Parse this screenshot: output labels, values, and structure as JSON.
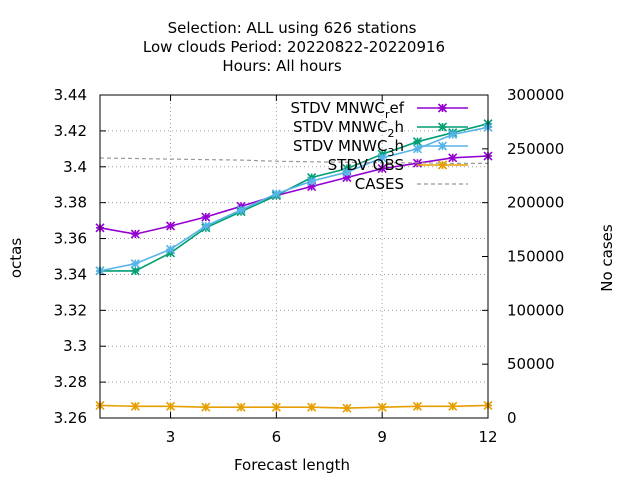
{
  "chart_data": {
    "type": "line",
    "title_lines": [
      "Selection: ALL using   626 stations",
      "Low clouds   Period: 20220822-20220916",
      "Hours:  All hours"
    ],
    "xlabel": "Forecast length",
    "ylabel": "octas",
    "y2label": "No cases",
    "x": [
      1,
      2,
      3,
      4,
      5,
      6,
      7,
      8,
      9,
      10,
      11,
      12
    ],
    "xlim": [
      1,
      12
    ],
    "xticks": [
      3,
      6,
      9,
      12
    ],
    "ylim": [
      3.26,
      3.44
    ],
    "yticks": [
      "3.26",
      "3.28",
      "3.3",
      "3.32",
      "3.34",
      "3.36",
      "3.38",
      "3.4",
      "3.42",
      "3.44"
    ],
    "y2lim": [
      0,
      300000
    ],
    "y2ticks": [
      "0",
      "50000",
      "100000",
      "150000",
      "200000",
      "250000",
      "300000"
    ],
    "grid": true,
    "legend_position": "top-right",
    "series": [
      {
        "name": "STDV MNWC_ref",
        "legend_base": "STDV MNWC",
        "legend_sub": "r",
        "legend_tail": "ef",
        "color": "#9400d3",
        "marker": "asterisk",
        "axis": "y1",
        "values": [
          3.366,
          3.3625,
          3.367,
          3.372,
          3.378,
          3.384,
          3.389,
          3.394,
          3.399,
          3.402,
          3.405,
          3.406
        ]
      },
      {
        "name": "STDV MNWC_2h",
        "legend_base": "STDV MNWC",
        "legend_sub": "2",
        "legend_tail": "h",
        "color": "#009e73",
        "marker": "asterisk",
        "axis": "y1",
        "values": [
          3.342,
          3.342,
          3.352,
          3.366,
          3.375,
          3.384,
          3.394,
          3.399,
          3.407,
          3.414,
          3.419,
          3.424
        ]
      },
      {
        "name": "STDV MNWC_3h",
        "legend_base": "STDV MNWC",
        "legend_sub": "3",
        "legend_tail": "h",
        "color": "#56b4e9",
        "marker": "asterisk",
        "axis": "y1",
        "values": [
          3.342,
          3.346,
          3.354,
          3.367,
          3.376,
          3.385,
          3.392,
          3.397,
          3.405,
          3.41,
          3.418,
          3.422
        ]
      },
      {
        "name": "STDV OBS",
        "legend_base": "STDV OBS",
        "legend_sub": "",
        "legend_tail": "",
        "color": "#e69f00",
        "marker": "asterisk",
        "axis": "y1",
        "values": [
          3.267,
          3.2665,
          3.2665,
          3.266,
          3.266,
          3.266,
          3.266,
          3.2655,
          3.266,
          3.2665,
          3.2665,
          3.267
        ]
      },
      {
        "name": "CASES",
        "legend_base": "CASES",
        "legend_sub": "",
        "legend_tail": "",
        "color": "#999999",
        "marker": "none",
        "dashed": true,
        "axis": "y2",
        "values": [
          241500,
          241000,
          240500,
          240000,
          239500,
          238500,
          238000,
          237500,
          237000,
          237000,
          236500,
          236500
        ]
      }
    ]
  }
}
